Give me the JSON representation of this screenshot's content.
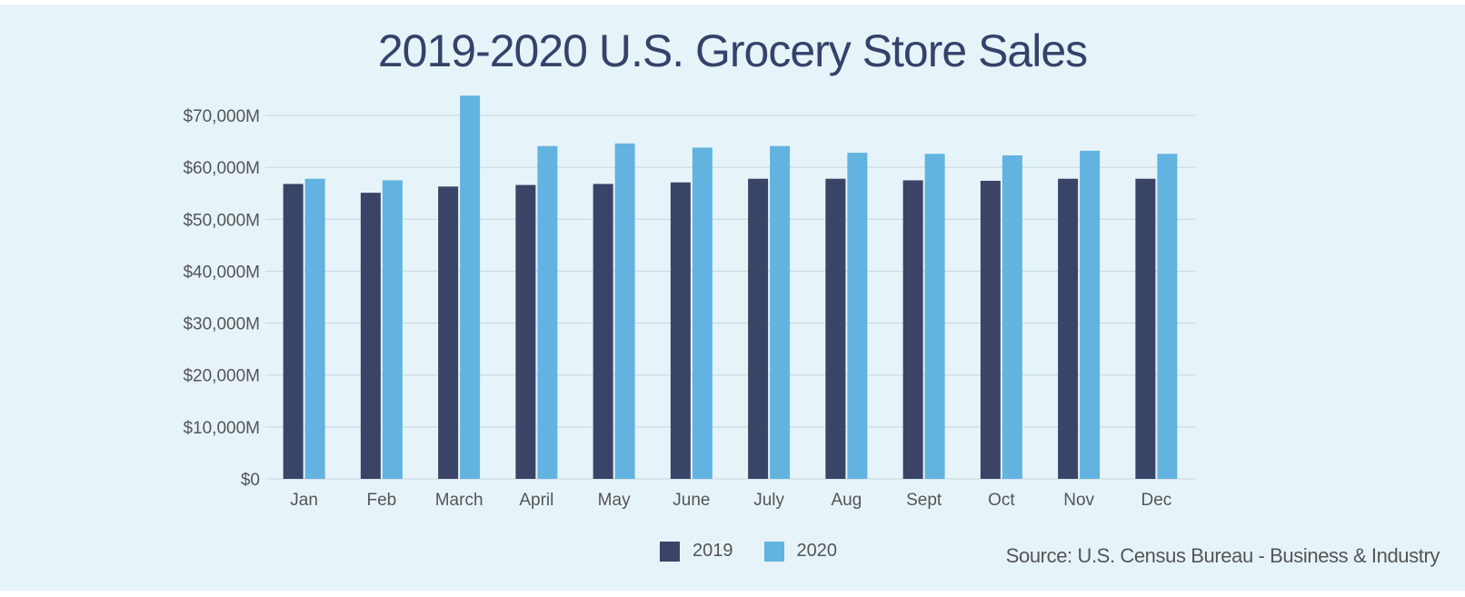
{
  "colors": {
    "background": "#e6f4fa",
    "series_2019": "#3a4466",
    "series_2020": "#62b3e0",
    "gridline": "#c5d6df",
    "title": "#35426a"
  },
  "legend": {
    "items": [
      {
        "label": "2019",
        "color": "#3a4466"
      },
      {
        "label": "2020",
        "color": "#62b3e0"
      }
    ]
  },
  "source": "Source: U.S. Census Bureau - Business & Industry",
  "chart_data": {
    "type": "bar",
    "title": "2019-2020 U.S. Grocery Store Sales",
    "xlabel": "",
    "ylabel": "",
    "categories": [
      "Jan",
      "Feb",
      "March",
      "April",
      "May",
      "June",
      "July",
      "Aug",
      "Sept",
      "Oct",
      "Nov",
      "Dec"
    ],
    "series": [
      {
        "name": "2019",
        "values": [
          56800,
          55100,
          56300,
          56600,
          56800,
          57100,
          57800,
          57800,
          57500,
          57400,
          57800,
          57800
        ]
      },
      {
        "name": "2020",
        "values": [
          57800,
          57500,
          73800,
          64100,
          64600,
          63800,
          64100,
          62800,
          62600,
          62300,
          63200,
          62600
        ]
      }
    ],
    "ylim": [
      0,
      70000
    ],
    "yticks": [
      0,
      10000,
      20000,
      30000,
      40000,
      50000,
      60000,
      70000
    ],
    "ytick_labels": [
      "$0",
      "$10,000M",
      "$20,000M",
      "$30,000M",
      "$40,000M",
      "$50,000M",
      "$60,000M",
      "$70,000M"
    ],
    "grid": true,
    "legend_position": "bottom"
  }
}
